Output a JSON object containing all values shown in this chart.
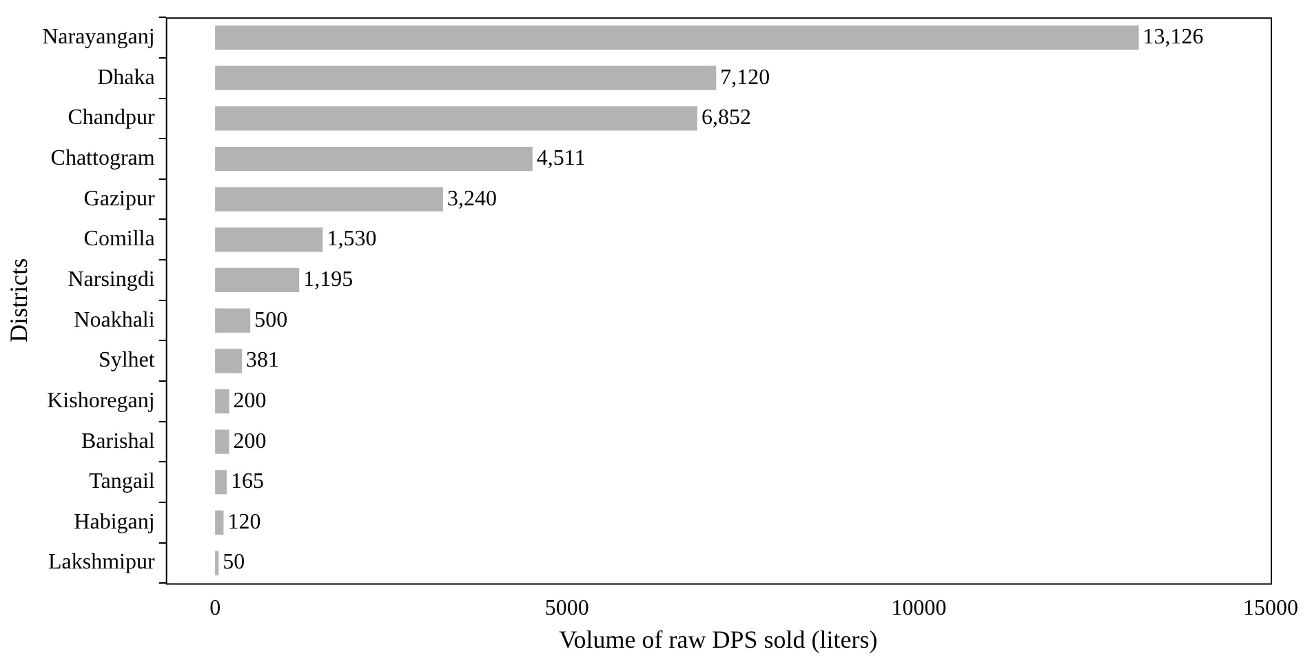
{
  "chart_data": {
    "type": "bar",
    "orientation": "horizontal",
    "xlabel": "Volume of raw DPS sold (liters)",
    "ylabel": "Districts",
    "categories": [
      "Narayanganj",
      "Dhaka",
      "Chandpur",
      "Chattogram",
      "Gazipur",
      "Comilla",
      "Narsingdi",
      "Noakhali",
      "Sylhet",
      "Kishoreganj",
      "Barishal",
      "Tangail",
      "Habiganj",
      "Lakshmipur"
    ],
    "values": [
      13126,
      7120,
      6852,
      4511,
      3240,
      1530,
      1195,
      500,
      381,
      200,
      200,
      165,
      120,
      50
    ],
    "value_labels": [
      "13,126",
      "7,120",
      "6,852",
      "4,511",
      "3,240",
      "1,530",
      "1,195",
      "500",
      "381",
      "200",
      "200",
      "165",
      "120",
      "50"
    ],
    "color": "#b3b3b3",
    "xlim": [
      -700,
      15000
    ],
    "xticks": [
      0,
      5000,
      10000,
      15000
    ],
    "grid": false,
    "legend": false
  }
}
